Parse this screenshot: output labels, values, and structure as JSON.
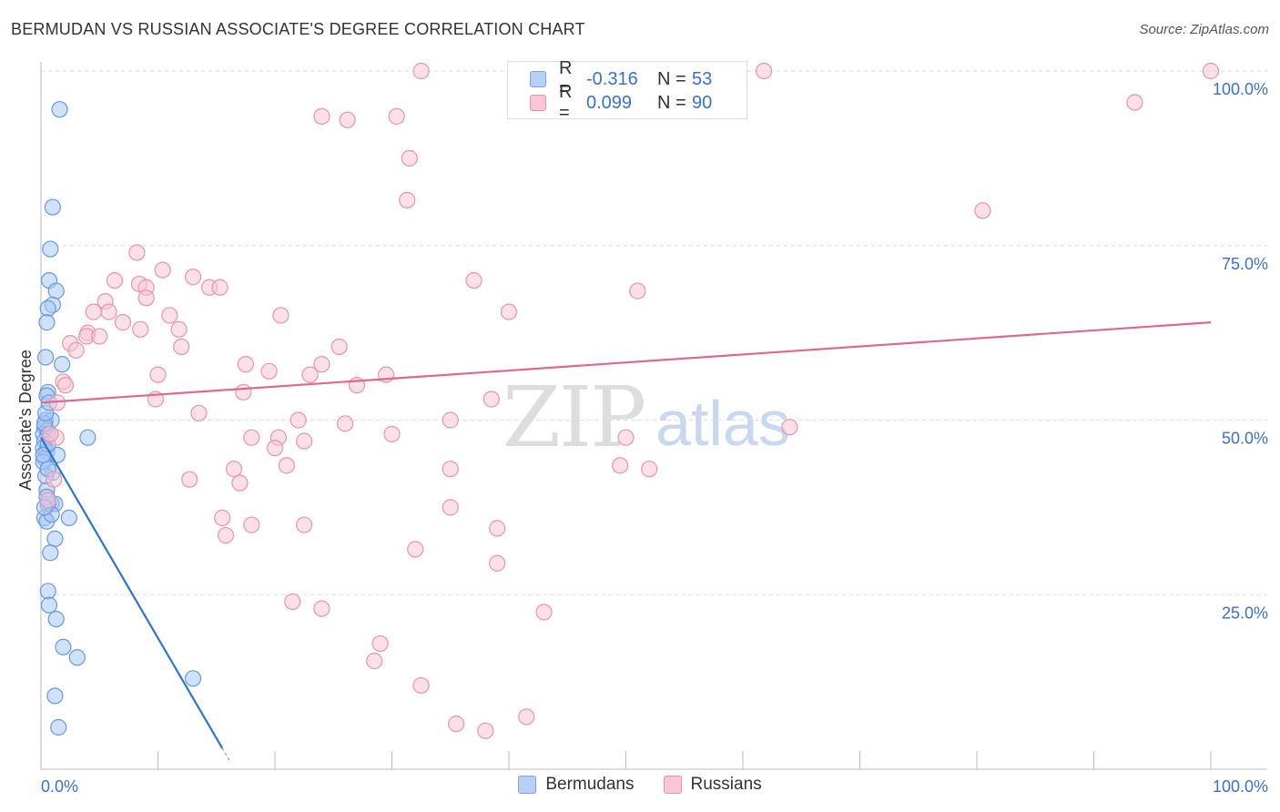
{
  "title": "BERMUDAN VS RUSSIAN ASSOCIATE'S DEGREE CORRELATION CHART",
  "source": "Source: ZipAtlas.com",
  "watermark_left": "ZIP",
  "watermark_right": "atlas",
  "legend_top": {
    "rows": [
      {
        "r_label": "R =",
        "r_value": "-0.316",
        "n_label": "N =",
        "n_value": "53",
        "fill": "#b8d0f5",
        "stroke": "#7aa3e0"
      },
      {
        "r_label": "R =",
        "r_value": "0.099",
        "n_label": "N =",
        "n_value": "90",
        "fill": "#f9c6d6",
        "stroke": "#e893ad"
      }
    ]
  },
  "legend_bottom": [
    {
      "label": "Bermudans",
      "fill": "#b8d0f5",
      "stroke": "#7aa3e0"
    },
    {
      "label": "Russians",
      "fill": "#f9c6d6",
      "stroke": "#e893ad"
    }
  ],
  "chart_data": {
    "type": "scatter",
    "title": "BERMUDAN VS RUSSIAN ASSOCIATE'S DEGREE CORRELATION CHART",
    "xlabel": "",
    "ylabel": "Associate's Degree",
    "xlim": [
      0,
      100
    ],
    "ylim": [
      0,
      100
    ],
    "x_tick_labels": [
      "0.0%",
      "100.0%"
    ],
    "y_tick_labels": [
      "25.0%",
      "50.0%",
      "75.0%",
      "100.0%"
    ],
    "y_ticks": [
      25,
      50,
      75,
      100
    ],
    "grid": true,
    "series": [
      {
        "name": "Bermudans",
        "color": "#6a98e0",
        "fill": "rgba(170,200,245,0.55)",
        "trend_color": "#2f74d0",
        "trend": {
          "x1": 0.0,
          "y1": 47.5,
          "x2": 15.5,
          "y2": 3.0,
          "dash_x2": 16.2,
          "dash_y2": 1.0
        },
        "points": [
          [
            1.6,
            94.5
          ],
          [
            1.0,
            80.5
          ],
          [
            0.8,
            74.5
          ],
          [
            0.7,
            70.0
          ],
          [
            1.3,
            68.5
          ],
          [
            1.0,
            66.5
          ],
          [
            0.6,
            66.0
          ],
          [
            0.5,
            64.0
          ],
          [
            0.4,
            59.0
          ],
          [
            1.8,
            58.0
          ],
          [
            0.6,
            54.0
          ],
          [
            0.5,
            53.5
          ],
          [
            0.4,
            50.0
          ],
          [
            0.9,
            50.0
          ],
          [
            0.3,
            49.0
          ],
          [
            0.5,
            48.5
          ],
          [
            0.2,
            48.0
          ],
          [
            0.6,
            48.0
          ],
          [
            4.0,
            47.5
          ],
          [
            0.3,
            47.0
          ],
          [
            0.2,
            46.0
          ],
          [
            0.5,
            45.5
          ],
          [
            1.4,
            45.0
          ],
          [
            0.3,
            44.5
          ],
          [
            1.0,
            42.5
          ],
          [
            0.5,
            40.0
          ],
          [
            0.9,
            38.0
          ],
          [
            1.2,
            38.0
          ],
          [
            0.6,
            38.0
          ],
          [
            0.3,
            36.0
          ],
          [
            2.4,
            36.0
          ],
          [
            0.5,
            35.5
          ],
          [
            1.2,
            33.0
          ],
          [
            0.8,
            31.0
          ],
          [
            0.6,
            25.5
          ],
          [
            0.7,
            23.5
          ],
          [
            1.3,
            21.5
          ],
          [
            1.9,
            17.5
          ],
          [
            3.1,
            16.0
          ],
          [
            13.0,
            13.0
          ],
          [
            1.2,
            10.5
          ],
          [
            1.5,
            6.0
          ],
          [
            0.2,
            44.0
          ],
          [
            0.4,
            42.0
          ],
          [
            0.6,
            46.5
          ],
          [
            0.3,
            49.5
          ],
          [
            0.4,
            51.0
          ],
          [
            0.7,
            52.5
          ],
          [
            0.2,
            45.0
          ],
          [
            0.5,
            39.0
          ],
          [
            0.9,
            36.5
          ],
          [
            0.3,
            37.5
          ],
          [
            0.6,
            43.0
          ]
        ]
      },
      {
        "name": "Russians",
        "color": "#e893ad",
        "fill": "rgba(249,198,214,0.55)",
        "trend_color": "#e06890",
        "trend": {
          "x1": 0.0,
          "y1": 52.5,
          "x2": 100.0,
          "y2": 64.0
        },
        "points": [
          [
            32.5,
            100.0
          ],
          [
            59.7,
            100.0
          ],
          [
            61.8,
            100.0
          ],
          [
            100.0,
            100.0
          ],
          [
            93.5,
            95.5
          ],
          [
            24.0,
            93.5
          ],
          [
            26.2,
            93.0
          ],
          [
            30.4,
            93.5
          ],
          [
            31.5,
            87.5
          ],
          [
            31.3,
            81.5
          ],
          [
            80.5,
            80.0
          ],
          [
            8.2,
            74.0
          ],
          [
            10.4,
            71.5
          ],
          [
            6.3,
            70.0
          ],
          [
            13.0,
            70.5
          ],
          [
            14.4,
            69.0
          ],
          [
            15.3,
            69.0
          ],
          [
            8.4,
            69.5
          ],
          [
            9.0,
            69.0
          ],
          [
            37.0,
            70.0
          ],
          [
            51.0,
            68.5
          ],
          [
            9.0,
            67.5
          ],
          [
            5.5,
            67.0
          ],
          [
            5.8,
            65.5
          ],
          [
            4.5,
            65.5
          ],
          [
            11.0,
            65.0
          ],
          [
            20.5,
            65.0
          ],
          [
            40.0,
            65.5
          ],
          [
            7.0,
            64.0
          ],
          [
            8.5,
            63.0
          ],
          [
            11.8,
            63.0
          ],
          [
            4.0,
            62.5
          ],
          [
            3.9,
            62.0
          ],
          [
            5.0,
            62.0
          ],
          [
            2.5,
            61.0
          ],
          [
            12.0,
            60.5
          ],
          [
            25.5,
            60.5
          ],
          [
            3.0,
            60.0
          ],
          [
            17.5,
            58.0
          ],
          [
            24.0,
            58.0
          ],
          [
            19.5,
            57.0
          ],
          [
            10.0,
            56.5
          ],
          [
            23.0,
            56.5
          ],
          [
            29.5,
            56.5
          ],
          [
            1.9,
            55.5
          ],
          [
            2.1,
            55.0
          ],
          [
            27.0,
            55.0
          ],
          [
            17.3,
            54.0
          ],
          [
            38.5,
            53.0
          ],
          [
            9.8,
            53.0
          ],
          [
            1.4,
            52.5
          ],
          [
            13.5,
            51.0
          ],
          [
            22.0,
            50.0
          ],
          [
            35.0,
            50.0
          ],
          [
            26.0,
            49.5
          ],
          [
            64.0,
            49.0
          ],
          [
            30.0,
            48.0
          ],
          [
            18.0,
            47.5
          ],
          [
            20.3,
            47.5
          ],
          [
            22.5,
            47.0
          ],
          [
            50.0,
            47.5
          ],
          [
            1.3,
            47.5
          ],
          [
            20.0,
            46.0
          ],
          [
            35.0,
            43.0
          ],
          [
            21.0,
            43.5
          ],
          [
            49.5,
            43.5
          ],
          [
            52.0,
            43.0
          ],
          [
            16.5,
            43.0
          ],
          [
            12.7,
            41.5
          ],
          [
            17.0,
            41.0
          ],
          [
            35.0,
            37.5
          ],
          [
            15.5,
            36.0
          ],
          [
            18.0,
            35.0
          ],
          [
            22.5,
            35.0
          ],
          [
            39.0,
            34.5
          ],
          [
            15.8,
            33.5
          ],
          [
            32.0,
            31.5
          ],
          [
            39.0,
            29.5
          ],
          [
            21.5,
            24.0
          ],
          [
            24.0,
            23.0
          ],
          [
            43.0,
            22.5
          ],
          [
            29.0,
            18.0
          ],
          [
            28.5,
            15.5
          ],
          [
            32.5,
            12.0
          ],
          [
            35.5,
            6.5
          ],
          [
            38.0,
            5.5
          ],
          [
            41.5,
            7.5
          ],
          [
            0.8,
            48.0
          ],
          [
            1.1,
            41.5
          ],
          [
            0.6,
            38.5
          ]
        ]
      }
    ]
  }
}
